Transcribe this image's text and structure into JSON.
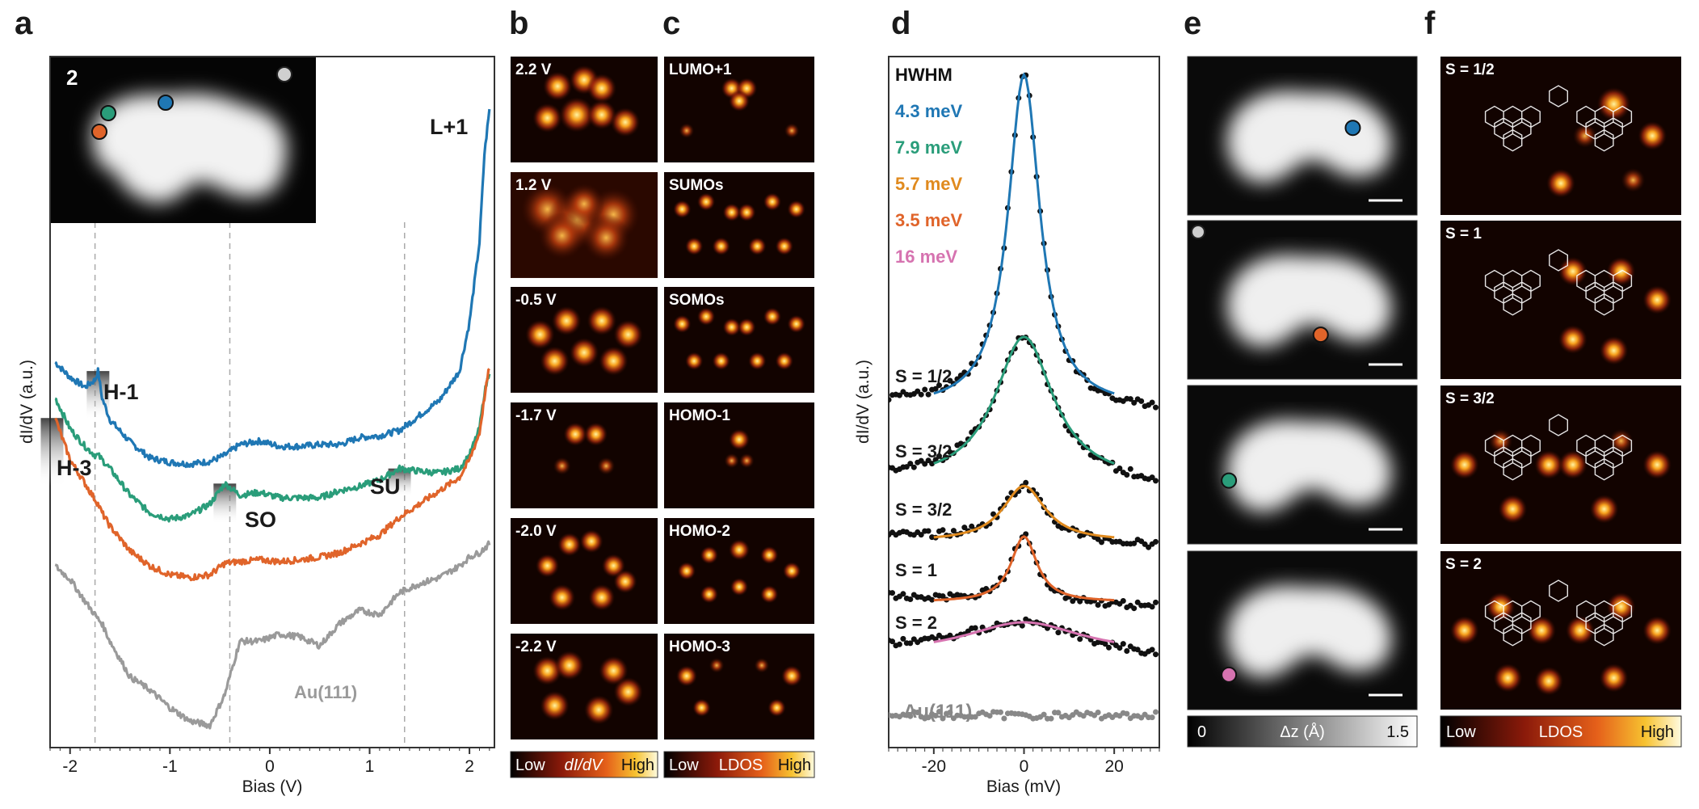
{
  "panels": {
    "a": "a",
    "b": "b",
    "c": "c",
    "d": "d",
    "e": "e",
    "f": "f"
  },
  "panel_a": {
    "ylabel": "dI/dV (a.u.)",
    "xlabel": "Bias (V)",
    "x_ticks": [
      "-2",
      "-1",
      "0",
      "1",
      "2"
    ],
    "inset_label": "2",
    "annotations": {
      "h1": "H-1",
      "h3": "H-3",
      "so": "SO",
      "su": "SU",
      "l1": "L+1",
      "au": "Au(111)"
    },
    "colors": {
      "blue": "#1f77b4",
      "green": "#2a9d7a",
      "orange": "#e0642a",
      "gray": "#9a9a9a"
    }
  },
  "chart_data": [
    {
      "type": "line",
      "title": "a",
      "xlabel": "Bias (V)",
      "ylabel": "dI/dV (a.u.)",
      "xlim": [
        -2.2,
        2.25
      ],
      "x": [
        -2.15,
        -2.0,
        -1.85,
        -1.75,
        -1.72,
        -1.68,
        -1.6,
        -1.4,
        -1.2,
        -1.0,
        -0.8,
        -0.6,
        -0.45,
        -0.3,
        -0.1,
        0.1,
        0.3,
        0.5,
        0.7,
        0.9,
        1.1,
        1.3,
        1.5,
        1.7,
        1.9,
        2.0,
        2.1,
        2.15,
        2.2
      ],
      "series": [
        {
          "name": "blue",
          "color": "#1f77b4",
          "values": [
            3.15,
            2.98,
            2.87,
            2.95,
            3.05,
            2.75,
            2.5,
            2.25,
            2.07,
            2.02,
            2.0,
            2.03,
            2.1,
            2.22,
            2.26,
            2.2,
            2.2,
            2.22,
            2.22,
            2.3,
            2.32,
            2.38,
            2.55,
            2.72,
            3.05,
            3.6,
            4.5,
            5.5,
            6.0
          ]
        },
        {
          "name": "green",
          "color": "#2a9d7a",
          "values": [
            2.75,
            2.4,
            2.2,
            2.1,
            2.1,
            2.05,
            1.95,
            1.65,
            1.45,
            1.38,
            1.42,
            1.55,
            1.78,
            1.65,
            1.68,
            1.62,
            1.62,
            1.62,
            1.7,
            1.75,
            1.82,
            1.95,
            1.92,
            1.9,
            1.95,
            2.1,
            2.4,
            2.8,
            3.05
          ]
        },
        {
          "name": "orange",
          "color": "#e0642a",
          "values": [
            2.52,
            2.05,
            1.78,
            1.6,
            1.55,
            1.45,
            1.3,
            1.02,
            0.85,
            0.75,
            0.72,
            0.75,
            0.88,
            0.9,
            0.92,
            0.9,
            0.92,
            0.95,
            1.0,
            1.1,
            1.2,
            1.4,
            1.55,
            1.7,
            1.85,
            2.05,
            2.35,
            2.75,
            3.1
          ]
        },
        {
          "name": "Au(111)",
          "color": "#9a9a9a",
          "values": [
            0.85,
            0.7,
            0.45,
            0.3,
            0.25,
            0.2,
            0.0,
            -0.4,
            -0.55,
            -0.75,
            -0.9,
            -0.95,
            -0.6,
            0.0,
            0.0,
            0.08,
            0.05,
            -0.05,
            0.2,
            0.35,
            0.3,
            0.55,
            0.65,
            0.72,
            0.85,
            0.95,
            1.0,
            1.05,
            1.1
          ]
        }
      ],
      "vlines": [
        -1.75,
        -0.4,
        1.35
      ]
    },
    {
      "type": "line",
      "title": "d",
      "xlabel": "Bias (mV)",
      "ylabel": "dI/dV (a.u.)",
      "xlim": [
        -30,
        30
      ],
      "x_ticks": [
        "-20",
        "0",
        "20"
      ],
      "hwhm_title": "HWHM",
      "series": [
        {
          "name": "S = 1/2",
          "hwhm": "4.3 meV",
          "color": "#1f77b4",
          "amplitude": 3.3
        },
        {
          "name": "S = 3/2",
          "hwhm": "7.9 meV",
          "color": "#2a9d7a",
          "amplitude": 1.45
        },
        {
          "name": "S = 3/2",
          "hwhm": "5.7 meV",
          "color": "#e08a1e",
          "amplitude": 0.55
        },
        {
          "name": "S = 1",
          "hwhm": "3.5 meV",
          "color": "#e0642a",
          "amplitude": 0.65
        },
        {
          "name": "S = 2",
          "hwhm": "16 meV",
          "color": "#d673b0",
          "amplitude": 0.32
        },
        {
          "name": "Au(111)",
          "hwhm": "",
          "color": "#888888",
          "amplitude": 0.0
        }
      ]
    }
  ],
  "panel_b": {
    "tiles": [
      "2.2 V",
      "1.2 V",
      "-0.5 V",
      "-1.7 V",
      "-2.0 V",
      "-2.2 V"
    ],
    "colorbar": {
      "low": "Low",
      "mid": "dI/dV",
      "high": "High"
    }
  },
  "panel_c": {
    "tiles": [
      "LUMO+1",
      "SUMOs",
      "SOMOs",
      "HOMO-1",
      "HOMO-2",
      "HOMO-3"
    ],
    "colorbar": {
      "low": "Low",
      "mid": "LDOS",
      "high": "High"
    }
  },
  "panel_d": {
    "spin_labels": [
      "S = 1/2",
      "S = 3/2",
      "S = 3/2",
      "S = 1",
      "S = 2"
    ],
    "au_label": "Au(111)",
    "hwhm_values": [
      "4.3 meV",
      "7.9 meV",
      "5.7 meV",
      "3.5 meV",
      "16 meV"
    ]
  },
  "panel_e": {
    "colorbar": {
      "low": "0",
      "mid": "Δz (Å)",
      "high": "1.5"
    }
  },
  "panel_f": {
    "tiles": [
      "S = 1/2",
      "S = 1",
      "S = 3/2",
      "S = 2"
    ],
    "colorbar": {
      "low": "Low",
      "mid": "LDOS",
      "high": "High"
    }
  }
}
